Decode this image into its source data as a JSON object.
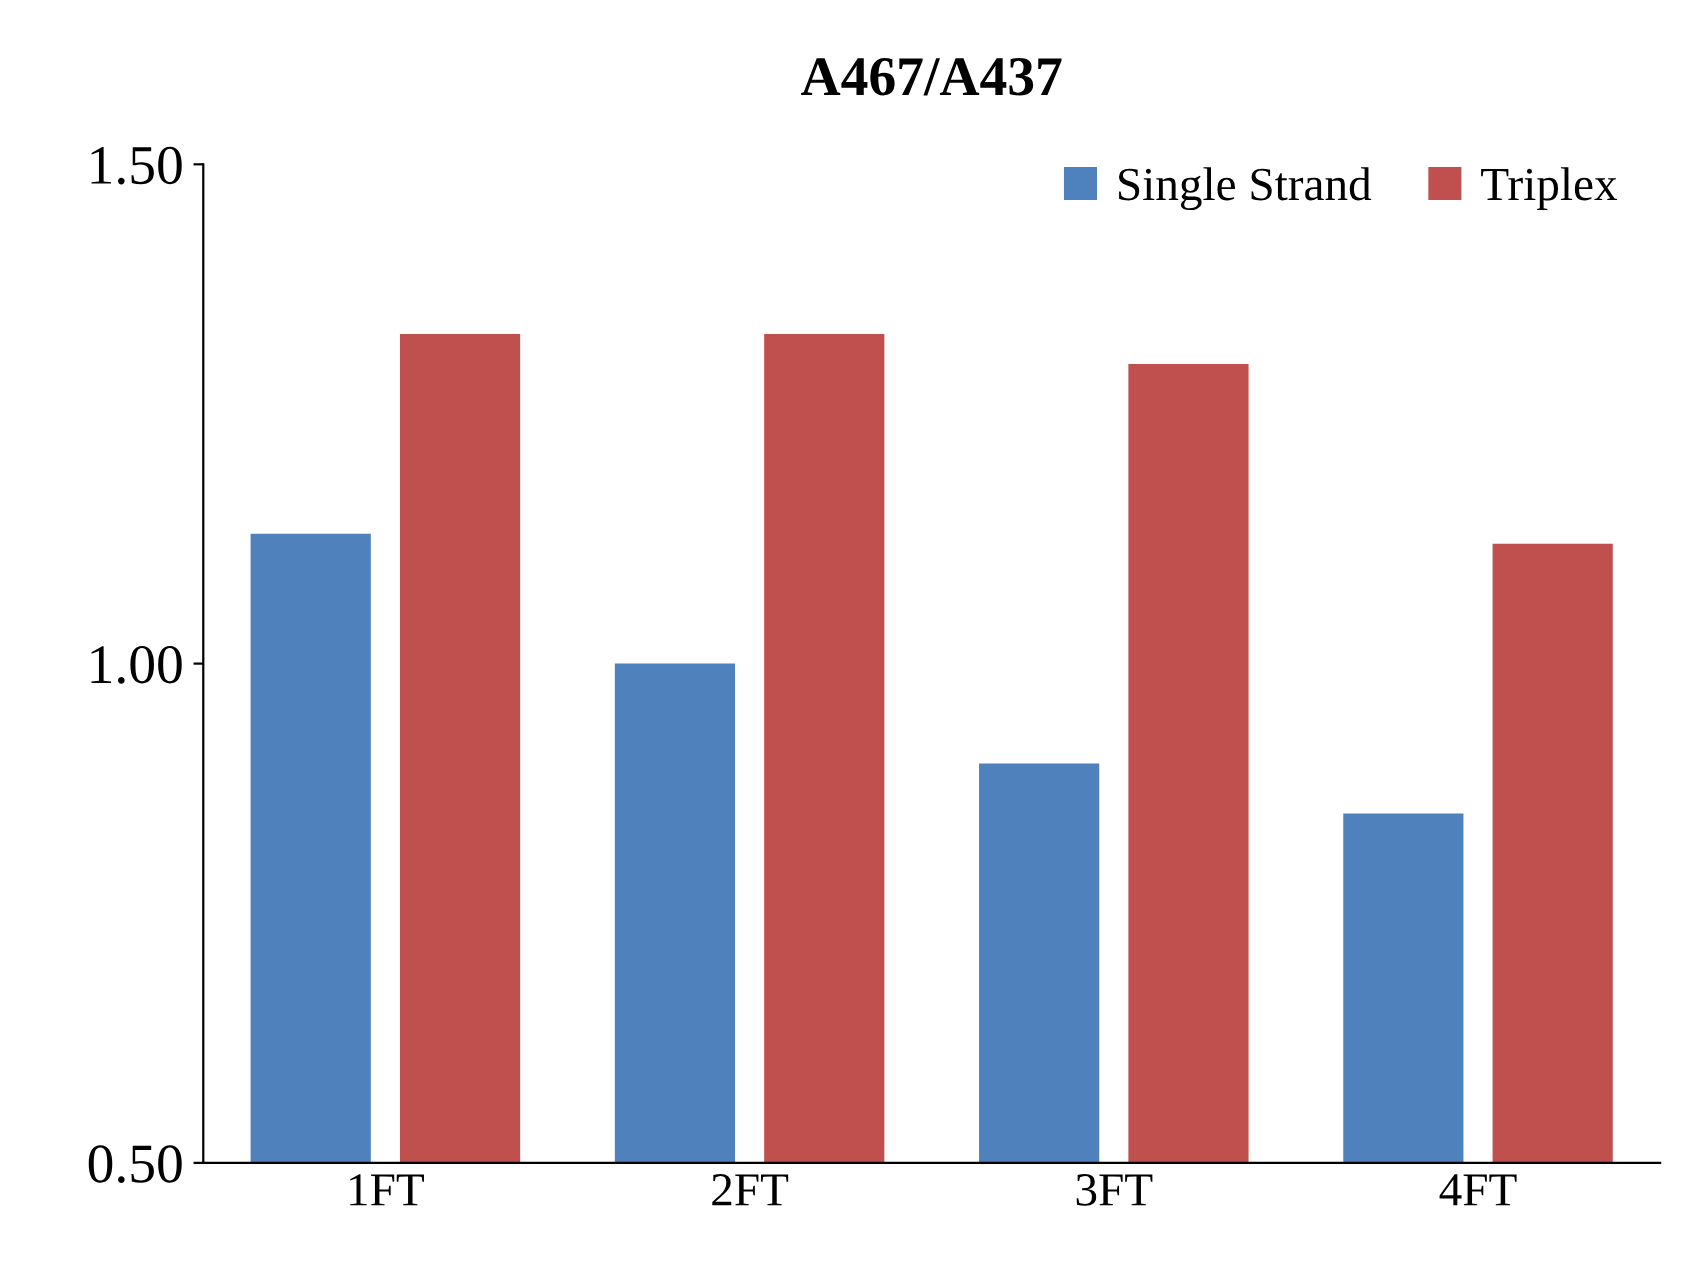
{
  "chart_data": {
    "type": "bar",
    "title": "A467/A437",
    "categories": [
      "1FT",
      "2FT",
      "3FT",
      "4FT"
    ],
    "series": [
      {
        "name": "Single Strand",
        "color": "#4f81bd",
        "values": [
          1.13,
          1.0,
          0.9,
          0.85
        ]
      },
      {
        "name": "Triplex",
        "color": "#c0504d",
        "values": [
          1.33,
          1.33,
          1.3,
          1.12
        ]
      }
    ],
    "ylim": [
      0.5,
      1.5
    ],
    "yticks": [
      {
        "value": 0.5,
        "label": "0.50"
      },
      {
        "value": 1.0,
        "label": "1.00"
      },
      {
        "value": 1.5,
        "label": "1.50"
      }
    ],
    "grid": false,
    "legend": "top right"
  }
}
